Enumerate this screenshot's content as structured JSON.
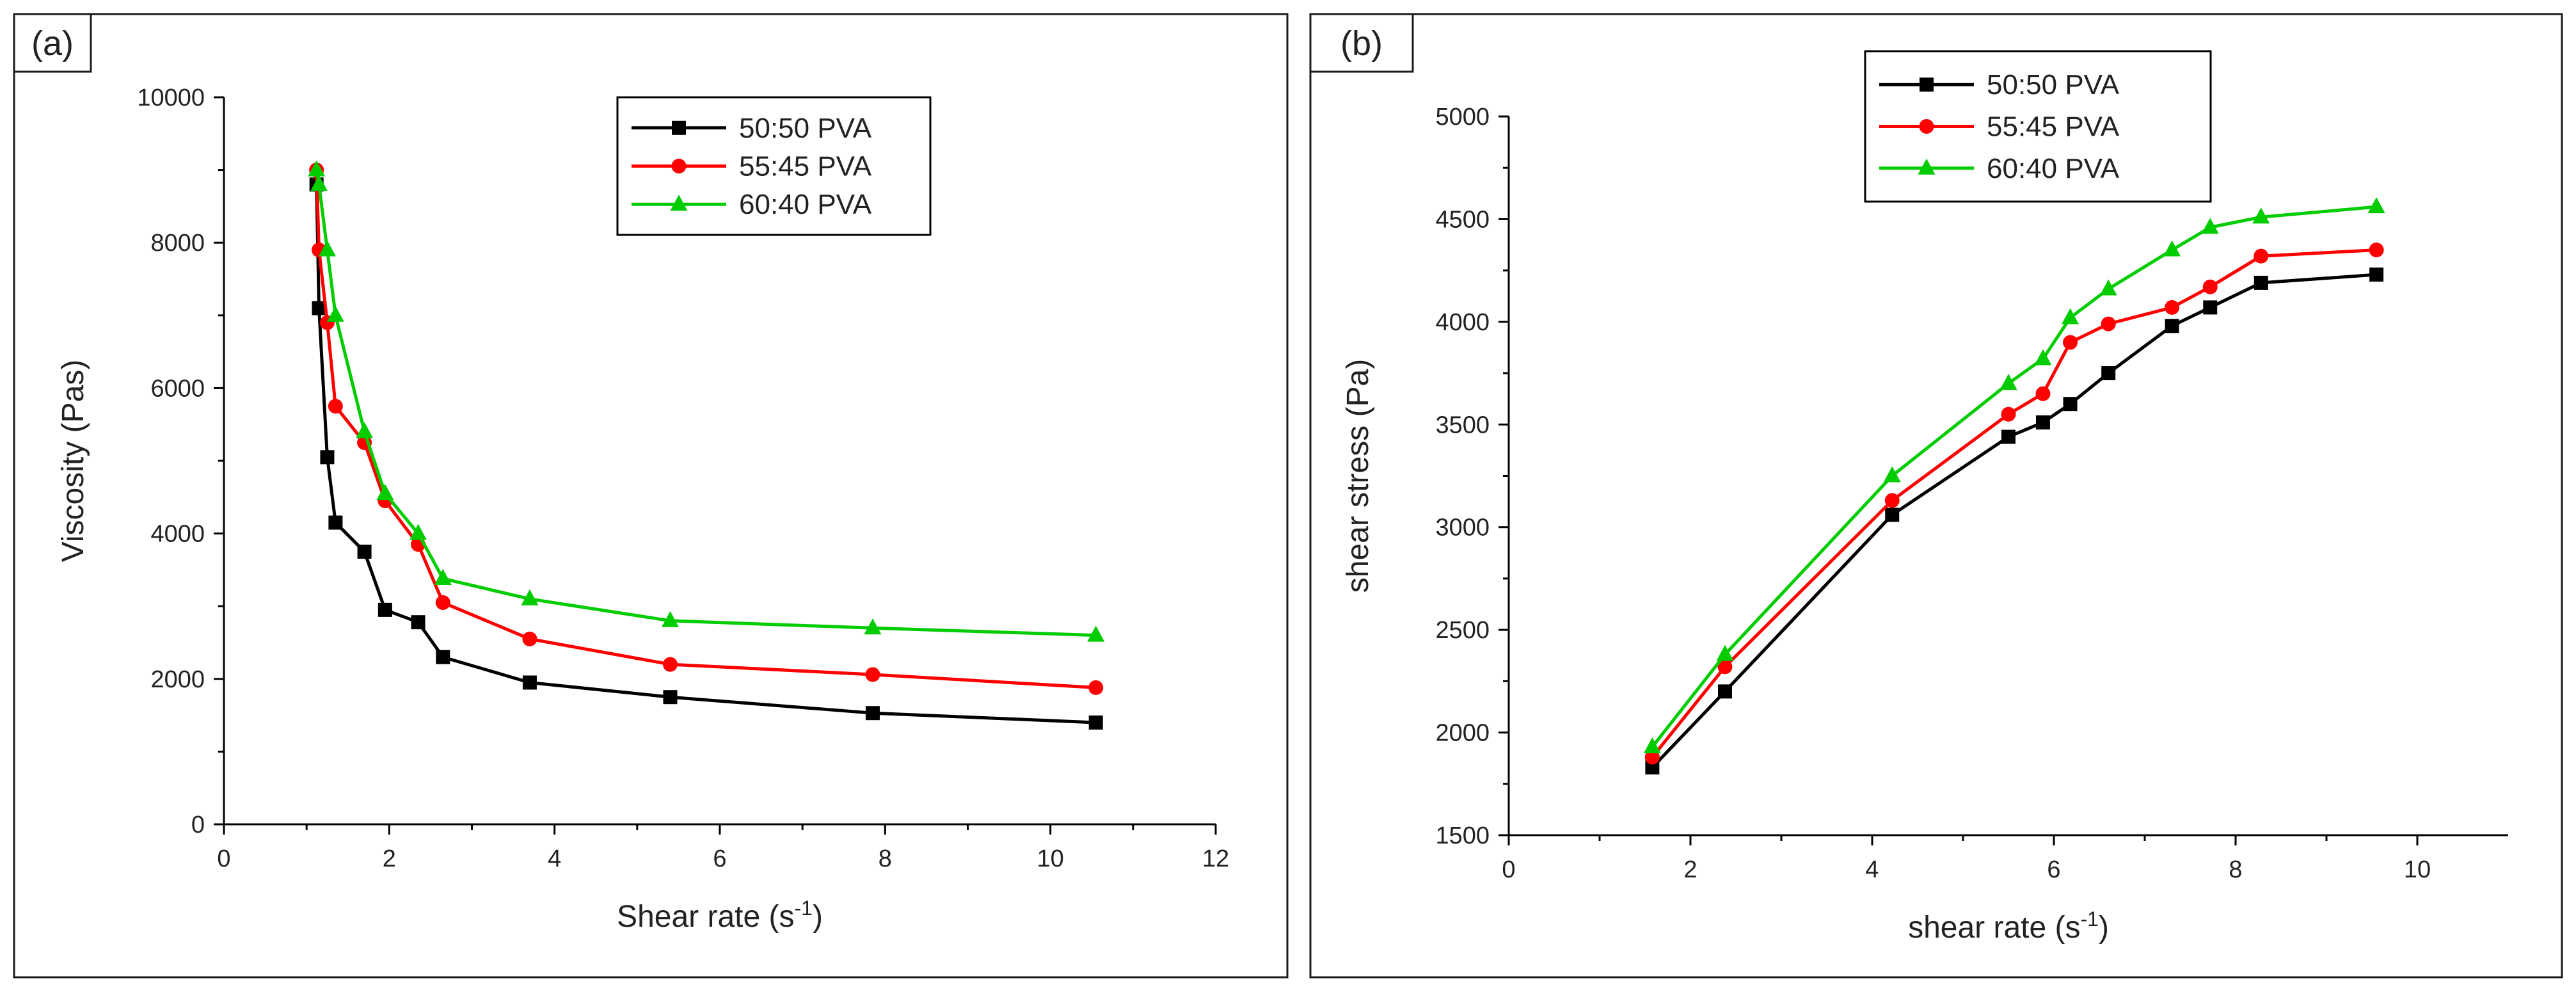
{
  "colors": {
    "frame": "#1a1a1a",
    "axis": "#000000",
    "text": "#222222",
    "series": [
      "#000000",
      "#ff0000",
      "#00cc00"
    ]
  },
  "chart_data": [
    {
      "type": "line",
      "panel_label": "(a)",
      "xlabel": "Shear rate (s",
      "xlabel_sup": "-1",
      "xlabel_tail": ")",
      "ylabel": "Viscosity (Pas)",
      "xlim": [
        0,
        12
      ],
      "ylim": [
        0,
        10000
      ],
      "xticks": [
        0,
        2,
        4,
        6,
        8,
        10,
        12
      ],
      "yticks": [
        0,
        2000,
        4000,
        6000,
        8000,
        10000
      ],
      "legend_position": "top-right",
      "series": [
        {
          "name": "50:50 PVA",
          "marker": "square",
          "x": [
            1.12,
            1.15,
            1.25,
            1.35,
            1.7,
            1.95,
            2.35,
            2.65,
            3.7,
            5.4,
            7.85,
            10.55
          ],
          "y": [
            8800,
            7100,
            5050,
            4150,
            3750,
            2950,
            2780,
            2300,
            1950,
            1750,
            1530,
            1400
          ]
        },
        {
          "name": "55:45 PVA",
          "marker": "circle",
          "x": [
            1.12,
            1.15,
            1.25,
            1.35,
            1.7,
            1.95,
            2.35,
            2.65,
            3.7,
            5.4,
            7.85,
            10.55
          ],
          "y": [
            9000,
            7900,
            6900,
            5750,
            5250,
            4450,
            3850,
            3050,
            2550,
            2200,
            2060,
            1880
          ]
        },
        {
          "name": "60:40 PVA",
          "marker": "triangle",
          "x": [
            1.12,
            1.15,
            1.25,
            1.35,
            1.7,
            1.95,
            2.35,
            2.65,
            3.7,
            5.4,
            7.85,
            10.55
          ],
          "y": [
            9000,
            8800,
            7900,
            7000,
            5400,
            4550,
            4000,
            3380,
            3100,
            2800,
            2700,
            2600
          ]
        }
      ]
    },
    {
      "type": "line",
      "panel_label": "(b)",
      "xlabel": "shear rate (s",
      "xlabel_sup": "-1",
      "xlabel_tail": ")",
      "ylabel": "shear stress (Pa)",
      "xlim": [
        0,
        11
      ],
      "ylim": [
        1500,
        5000
      ],
      "xticks": [
        0,
        2,
        4,
        6,
        8,
        10
      ],
      "yticks": [
        1500,
        2000,
        2500,
        3000,
        3500,
        4000,
        4500,
        5000
      ],
      "legend_position": "top-left",
      "series": [
        {
          "name": "50:50 PVA",
          "marker": "square",
          "x": [
            1.58,
            2.38,
            4.22,
            5.5,
            5.88,
            6.18,
            6.6,
            7.3,
            7.72,
            8.28,
            9.55
          ],
          "y": [
            1830,
            2200,
            3060,
            3440,
            3510,
            3600,
            3750,
            3980,
            4070,
            4190,
            4230
          ]
        },
        {
          "name": "55:45 PVA",
          "marker": "circle",
          "x": [
            1.58,
            2.38,
            4.22,
            5.5,
            5.88,
            6.18,
            6.6,
            7.3,
            7.72,
            8.28,
            9.55
          ],
          "y": [
            1880,
            2320,
            3130,
            3550,
            3650,
            3900,
            3990,
            4070,
            4170,
            4320,
            4350
          ]
        },
        {
          "name": "60:40 PVA",
          "marker": "triangle",
          "x": [
            1.58,
            2.38,
            4.22,
            5.5,
            5.88,
            6.18,
            6.6,
            7.3,
            7.72,
            8.28,
            9.55
          ],
          "y": [
            1930,
            2380,
            3250,
            3700,
            3820,
            4020,
            4160,
            4350,
            4460,
            4510,
            4560
          ]
        }
      ]
    }
  ]
}
